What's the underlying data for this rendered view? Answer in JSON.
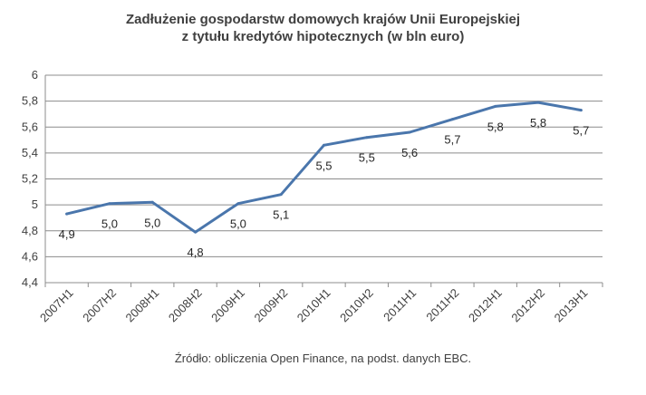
{
  "chart_data": {
    "type": "line",
    "title_lines": [
      "Zadłużenie gospodarstw domowych krajów Unii Europejskiej",
      "z tytułu kredytów hipotecznych (w bln euro)"
    ],
    "categories": [
      "2007H1",
      "2007H2",
      "2008H1",
      "2008H2",
      "2009H1",
      "2009H2",
      "2010H1",
      "2010H2",
      "2011H1",
      "2011H2",
      "2012H1",
      "2012H2",
      "2013H1"
    ],
    "values": [
      4.93,
      5.01,
      5.02,
      4.79,
      5.01,
      5.08,
      5.46,
      5.52,
      5.56,
      5.66,
      5.76,
      5.79,
      5.73
    ],
    "data_labels": [
      "4,9",
      "5,0",
      "5,0",
      "4,8",
      "5,0",
      "5,1",
      "5,5",
      "5,5",
      "5,6",
      "5,7",
      "5,8",
      "5,8",
      "5,7"
    ],
    "y_ticks": [
      4.4,
      4.6,
      4.8,
      5.0,
      5.2,
      5.4,
      5.6,
      5.8,
      6.0
    ],
    "y_tick_labels": [
      "4,4",
      "4,6",
      "4,8",
      "5",
      "5,2",
      "5,4",
      "5,6",
      "5,8",
      "6"
    ],
    "ylim": [
      4.4,
      6.0
    ],
    "grid": true,
    "xlabel": "",
    "ylabel": "",
    "line_color": "#4a76ac",
    "grid_color": "#8c8c8c",
    "source_note": "Źródło: obliczenia Open Finance, na podst. danych EBC."
  }
}
